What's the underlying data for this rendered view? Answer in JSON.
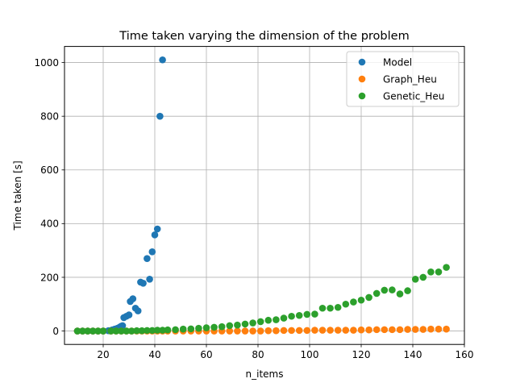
{
  "chart_data": {
    "type": "scatter",
    "title": "Time taken varying the dimension of the problem",
    "xlabel": "n_items",
    "ylabel": "Time taken [s]",
    "xlim": [
      5,
      160
    ],
    "ylim": [
      -50,
      1060
    ],
    "xticks": [
      20,
      40,
      60,
      80,
      100,
      120,
      140,
      160
    ],
    "yticks": [
      0,
      200,
      400,
      600,
      800,
      1000
    ],
    "xtick_labels": [
      "20",
      "40",
      "60",
      "80",
      "100",
      "120",
      "140",
      "160"
    ],
    "ytick_labels": [
      "0",
      "200",
      "400",
      "600",
      "800",
      "1000"
    ],
    "grid": true,
    "legend_position": "top-right",
    "series": [
      {
        "name": "Model",
        "color": "#1f77b4",
        "points": [
          [
            10,
            0
          ],
          [
            12,
            0
          ],
          [
            14,
            0
          ],
          [
            16,
            0
          ],
          [
            18,
            0
          ],
          [
            20,
            0
          ],
          [
            22,
            1
          ],
          [
            23,
            2
          ],
          [
            23.5,
            4
          ],
          [
            24,
            5
          ],
          [
            24.5,
            7
          ],
          [
            25,
            8
          ],
          [
            25.5,
            10
          ],
          [
            26,
            12
          ],
          [
            26.5,
            15
          ],
          [
            27,
            18
          ],
          [
            27.5,
            20
          ],
          [
            28,
            50
          ],
          [
            29,
            55
          ],
          [
            30,
            60
          ],
          [
            30.5,
            110
          ],
          [
            31.5,
            120
          ],
          [
            32.5,
            85
          ],
          [
            33.5,
            75
          ],
          [
            34.5,
            182
          ],
          [
            35.5,
            178
          ],
          [
            37,
            270
          ],
          [
            38,
            193
          ],
          [
            39,
            295
          ],
          [
            40,
            358
          ],
          [
            41,
            380
          ],
          [
            42,
            800
          ],
          [
            43,
            1010
          ]
        ]
      },
      {
        "name": "Graph_Heu",
        "color": "#ff7f0e",
        "points": [
          [
            10,
            0
          ],
          [
            12,
            0
          ],
          [
            14,
            0
          ],
          [
            16,
            0
          ],
          [
            18,
            0
          ],
          [
            20,
            0
          ],
          [
            23,
            0
          ],
          [
            25,
            0
          ],
          [
            27,
            0
          ],
          [
            29,
            0
          ],
          [
            31,
            0
          ],
          [
            33,
            0
          ],
          [
            35,
            0
          ],
          [
            37,
            0
          ],
          [
            39,
            0
          ],
          [
            41,
            0
          ],
          [
            43,
            0
          ],
          [
            45,
            0
          ],
          [
            48,
            0
          ],
          [
            51,
            0
          ],
          [
            54,
            0
          ],
          [
            57,
            0
          ],
          [
            60,
            0
          ],
          [
            63,
            0
          ],
          [
            66,
            0
          ],
          [
            69,
            0
          ],
          [
            72,
            0
          ],
          [
            75,
            0
          ],
          [
            78,
            0
          ],
          [
            81,
            0
          ],
          [
            84,
            1
          ],
          [
            87,
            1
          ],
          [
            90,
            2
          ],
          [
            93,
            2
          ],
          [
            96,
            2
          ],
          [
            99,
            2
          ],
          [
            102,
            3
          ],
          [
            105,
            3
          ],
          [
            108,
            3
          ],
          [
            111,
            3
          ],
          [
            114,
            3
          ],
          [
            117,
            3
          ],
          [
            120,
            4
          ],
          [
            123,
            4
          ],
          [
            126,
            5
          ],
          [
            129,
            5
          ],
          [
            132,
            5
          ],
          [
            135,
            5
          ],
          [
            138,
            6
          ],
          [
            141,
            6
          ],
          [
            144,
            6
          ],
          [
            147,
            7
          ],
          [
            150,
            7
          ],
          [
            153,
            7
          ]
        ]
      },
      {
        "name": "Genetic_Heu",
        "color": "#2ca02c",
        "points": [
          [
            10,
            0
          ],
          [
            12,
            0
          ],
          [
            14,
            0
          ],
          [
            16,
            0
          ],
          [
            18,
            0
          ],
          [
            20,
            0
          ],
          [
            23,
            0
          ],
          [
            25,
            0
          ],
          [
            27,
            0
          ],
          [
            29,
            0
          ],
          [
            31,
            0
          ],
          [
            33,
            1
          ],
          [
            35,
            1
          ],
          [
            37,
            2
          ],
          [
            39,
            2
          ],
          [
            41,
            3
          ],
          [
            43,
            3
          ],
          [
            45,
            4
          ],
          [
            48,
            5
          ],
          [
            51,
            7
          ],
          [
            54,
            8
          ],
          [
            57,
            10
          ],
          [
            60,
            12
          ],
          [
            63,
            14
          ],
          [
            66,
            16
          ],
          [
            69,
            20
          ],
          [
            72,
            22
          ],
          [
            75,
            26
          ],
          [
            78,
            30
          ],
          [
            81,
            35
          ],
          [
            84,
            40
          ],
          [
            87,
            42
          ],
          [
            90,
            48
          ],
          [
            93,
            55
          ],
          [
            96,
            58
          ],
          [
            99,
            62
          ],
          [
            102,
            63
          ],
          [
            105,
            85
          ],
          [
            108,
            85
          ],
          [
            111,
            88
          ],
          [
            114,
            100
          ],
          [
            117,
            108
          ],
          [
            120,
            115
          ],
          [
            123,
            125
          ],
          [
            126,
            140
          ],
          [
            129,
            152
          ],
          [
            132,
            153
          ],
          [
            135,
            138
          ],
          [
            138,
            150
          ],
          [
            141,
            193
          ],
          [
            144,
            200
          ],
          [
            147,
            220
          ],
          [
            150,
            220
          ],
          [
            153,
            237
          ]
        ]
      }
    ]
  }
}
